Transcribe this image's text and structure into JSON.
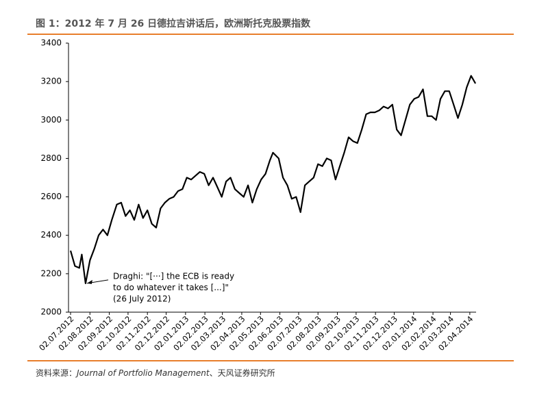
{
  "chart_data": {
    "type": "line",
    "title": "图 1：2012 年 7 月 26 日德拉吉讲话后，欧洲斯托克股票指数",
    "source": [
      "资料来源：",
      "Journal of Portfolio Management",
      "、天风证券研究所"
    ],
    "annotation": [
      "Draghi: \"[···] the ECB is ready",
      "to do whatever it takes [...]\"",
      "(26 July 2012)"
    ],
    "annotation_point": {
      "x": "26.07.2012",
      "y": 2150
    },
    "x": [
      "02.07.2012",
      "09.07.2012",
      "16.07.2012",
      "20.07.2012",
      "26.07.2012",
      "02.08.2012",
      "09.08.2012",
      "16.08.2012",
      "23.08.2012",
      "30.08.2012",
      "06.09.2012",
      "14.09.2012",
      "21.09.2012",
      "28.09.2012",
      "05.10.2012",
      "12.10.2012",
      "19.10.2012",
      "26.10.2012",
      "02.11.2012",
      "09.11.2012",
      "16.11.2012",
      "23.11.2012",
      "30.11.2012",
      "07.12.2012",
      "14.12.2012",
      "21.12.2012",
      "28.12.2012",
      "04.01.2013",
      "11.01.2013",
      "18.01.2013",
      "25.01.2013",
      "01.02.2013",
      "08.02.2013",
      "15.02.2013",
      "22.02.2013",
      "01.03.2013",
      "08.03.2013",
      "15.03.2013",
      "22.03.2013",
      "29.03.2013",
      "05.04.2013",
      "12.04.2013",
      "19.04.2013",
      "26.04.2013",
      "03.05.2013",
      "10.05.2013",
      "17.05.2013",
      "22.05.2013",
      "31.05.2013",
      "07.06.2013",
      "14.06.2013",
      "21.06.2013",
      "28.06.2013",
      "05.07.2013",
      "12.07.2013",
      "19.07.2013",
      "26.07.2013",
      "02.08.2013",
      "09.08.2013",
      "16.08.2013",
      "23.08.2013",
      "30.08.2013",
      "06.09.2013",
      "13.09.2013",
      "20.09.2013",
      "27.09.2013",
      "04.10.2013",
      "11.10.2013",
      "18.10.2013",
      "25.10.2013",
      "01.11.2013",
      "08.11.2013",
      "15.11.2013",
      "22.11.2013",
      "29.11.2013",
      "06.12.2013",
      "13.12.2013",
      "20.12.2013",
      "27.12.2013",
      "03.01.2014",
      "10.01.2014",
      "17.01.2014",
      "24.01.2014",
      "31.01.2014",
      "07.02.2014",
      "14.02.2014",
      "21.02.2014",
      "28.02.2014",
      "07.03.2014",
      "14.03.2014",
      "21.03.2014",
      "28.03.2014",
      "04.04.2014",
      "11.04.2014"
    ],
    "series": [
      {
        "name": "Euro Stoxx",
        "color": "#000000",
        "values": [
          2320,
          2240,
          2230,
          2300,
          2150,
          2270,
          2330,
          2400,
          2430,
          2400,
          2480,
          2560,
          2570,
          2500,
          2530,
          2480,
          2560,
          2490,
          2530,
          2460,
          2440,
          2540,
          2570,
          2590,
          2600,
          2630,
          2640,
          2700,
          2690,
          2710,
          2730,
          2720,
          2660,
          2700,
          2650,
          2600,
          2680,
          2700,
          2640,
          2620,
          2600,
          2660,
          2570,
          2640,
          2690,
          2720,
          2790,
          2830,
          2800,
          2700,
          2660,
          2590,
          2600,
          2520,
          2660,
          2680,
          2700,
          2770,
          2760,
          2800,
          2790,
          2690,
          2760,
          2830,
          2910,
          2890,
          2880,
          2950,
          3030,
          3040,
          3040,
          3050,
          3070,
          3060,
          3080,
          2950,
          2920,
          3000,
          3080,
          3110,
          3120,
          3160,
          3020,
          3020,
          3000,
          3110,
          3150,
          3150,
          3080,
          3010,
          3080,
          3170,
          3230,
          3190
        ]
      }
    ],
    "xlim": [
      "02.07.2012",
      "12.04.2014"
    ],
    "xticks": [
      "02.07.2012",
      "02.08.2012",
      "02.09.2012",
      "02.10.2012",
      "02.11.2012",
      "02.12.2012",
      "02.01.2013",
      "02.02.2013",
      "02.03.2013",
      "02.04.2013",
      "02.05.2013",
      "02.06.2013",
      "02.07.2013",
      "02.08.2013",
      "02.09.2013",
      "02.10.2013",
      "02.11.2013",
      "02.12.2013",
      "02.01.2014",
      "02.02.2014",
      "02.03.2014",
      "02.04.2014"
    ],
    "ylim": [
      2000,
      3400
    ],
    "yticks": [
      2000,
      2200,
      2400,
      2600,
      2800,
      3000,
      3200,
      3400
    ],
    "grid": false
  }
}
